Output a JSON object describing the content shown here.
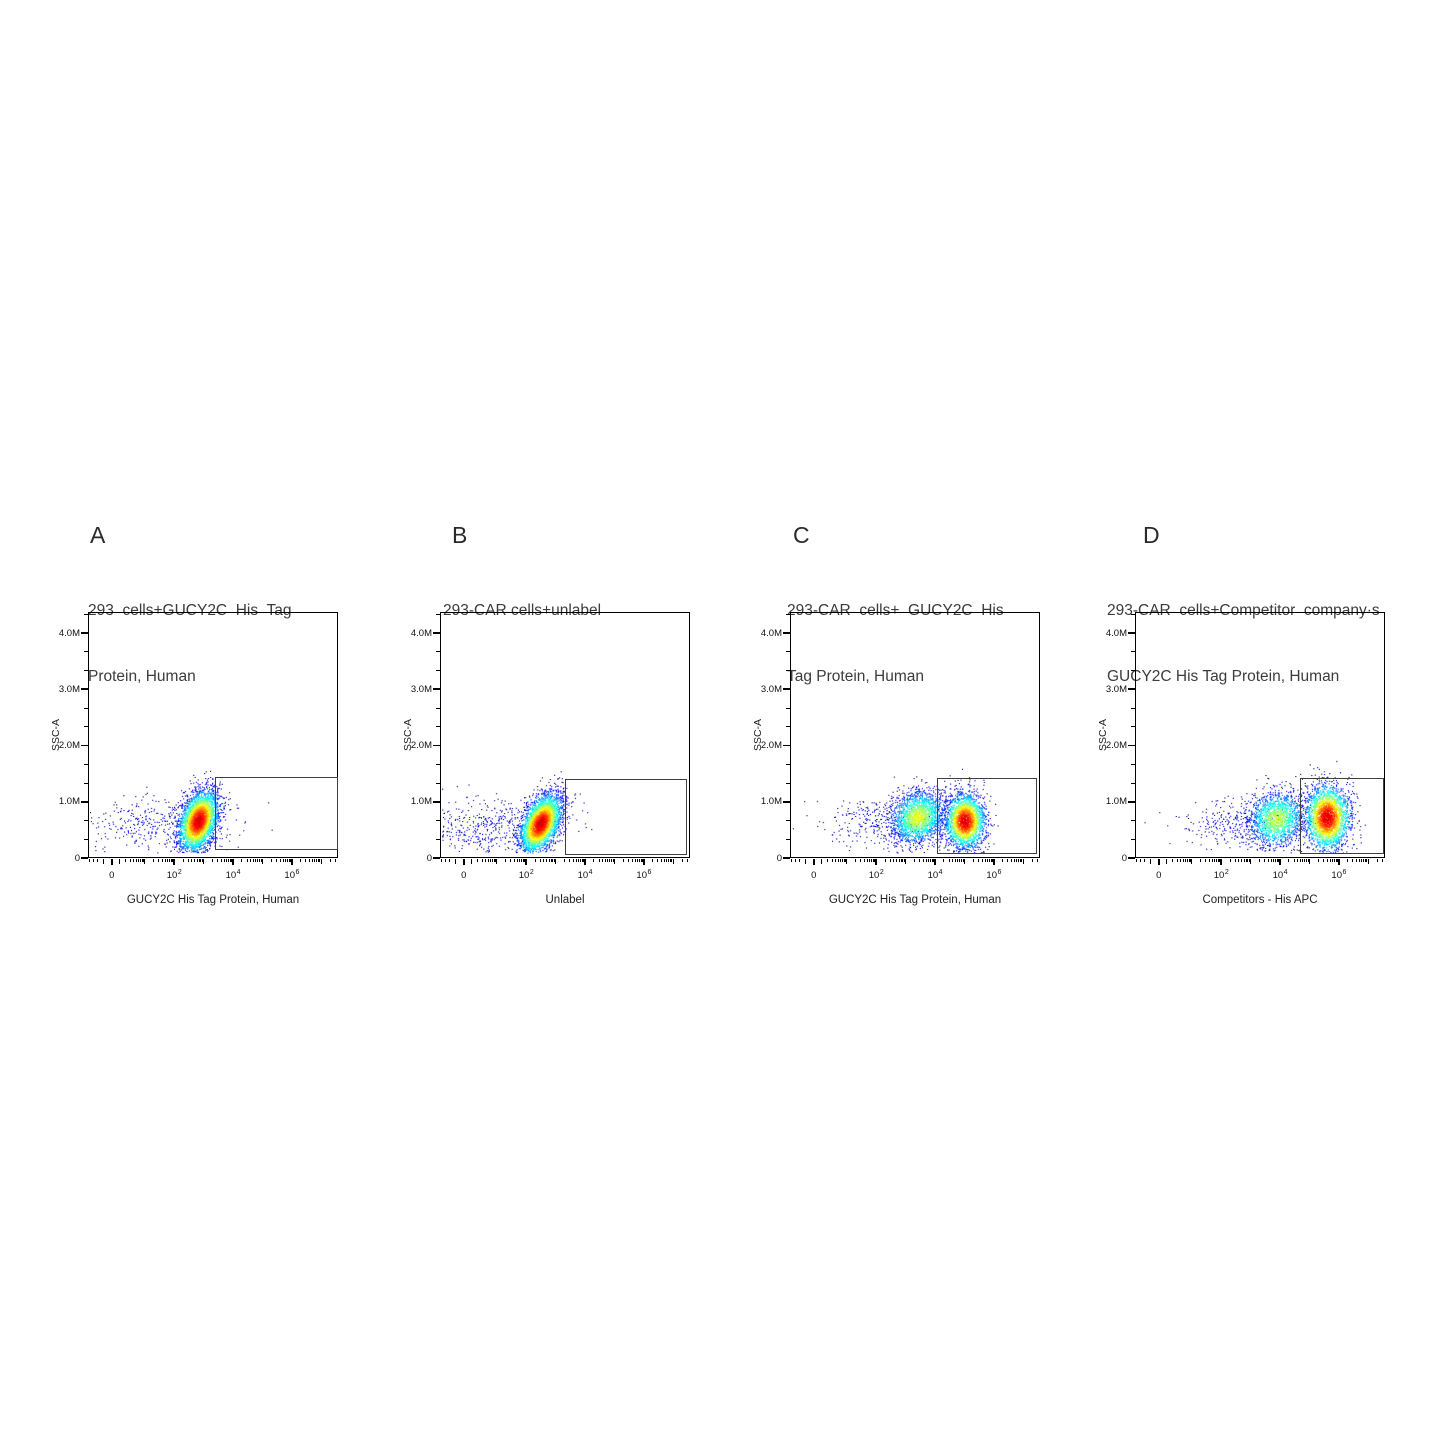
{
  "chart_data": {
    "type": "scatter",
    "subtype": "flow-cytometry-pseudocolor-density",
    "background": "#ffffff",
    "colormap": "jet-density",
    "colormap_stops": [
      "#000090",
      "#0000ff",
      "#00ffff",
      "#00ff00",
      "#ffff00",
      "#ff8000",
      "#ff1500"
    ],
    "gate_line_color": "#3f3f3f",
    "y_axis": {
      "label": "SSC-A",
      "max_value": 4375000,
      "ticks": [
        {
          "value": 0,
          "label": "0"
        },
        {
          "value": 1000000,
          "label": "1.0M"
        },
        {
          "value": 2000000,
          "label": "2.0M"
        },
        {
          "value": 3000000,
          "label": "3.0M"
        },
        {
          "value": 4000000,
          "label": "4.0M"
        }
      ],
      "minor_tick_step": 333333
    },
    "x_scale": {
      "type": "biexponential-asinh",
      "zero_fraction": 0.095,
      "fraction_per_asinh_unit": 0.0511,
      "linear_term": 1.5
    },
    "x_ticks": [
      {
        "value": 0,
        "base": "0",
        "exp": ""
      },
      {
        "value": 100,
        "base": "10",
        "exp": "2"
      },
      {
        "value": 10000,
        "base": "10",
        "exp": "4"
      },
      {
        "value": 1000000,
        "base": "10",
        "exp": "6"
      }
    ],
    "panels": [
      {
        "letter": "A",
        "title_lines": [
          "293  cells+GUCY2C  His  Tag",
          "Protein, Human"
        ],
        "x_label": "GUCY2C His Tag Protein, Human",
        "y_label": "SSC-A",
        "seed": 101,
        "gate": {
          "x0": 0.505,
          "x1": 0.996,
          "y0": 0.035,
          "y1": 0.335,
          "approx_x_range": "2.3e3 to 3e7",
          "approx_y_range": "0.15M to 1.47M",
          "stat_label": ""
        },
        "clusters": [
          {
            "name": "main-negative-population",
            "fx": 0.444,
            "fy": 0.143,
            "sigma_x": 0.04,
            "sigma_y": 0.062,
            "rho": 0.35,
            "count": 3600,
            "density_peak": 1.0,
            "approx_center": "x~6e2, SSC~0.63M"
          },
          {
            "name": "sparse-debris-left",
            "fx": 0.26,
            "fy": 0.13,
            "sigma_x": 0.12,
            "sigma_y": 0.055,
            "rho": 0.0,
            "count": 320,
            "density_peak": 0.12,
            "approx_center": "x~1e1, SSC~0.57M"
          },
          {
            "name": "stray-events-in-gate",
            "fx": 0.58,
            "fy": 0.17,
            "sigma_x": 0.06,
            "sigma_y": 0.06,
            "rho": 0.0,
            "count": 18,
            "density_peak": 0.1,
            "approx_center": "x~9e3, SSC~0.74M"
          }
        ]
      },
      {
        "letter": "B",
        "title_lines": [
          "293-CAR cells+unlabel",
          ""
        ],
        "x_label": "Unlabel",
        "y_label": "SSC-A",
        "seed": 202,
        "gate": {
          "x0": 0.495,
          "x1": 0.982,
          "y0": 0.018,
          "y1": 0.325,
          "approx_x_range": "2e3 to 2e7",
          "approx_y_range": "0.08M to 1.42M",
          "stat_label": ""
        },
        "clusters": [
          {
            "name": "main-negative-population",
            "fx": 0.404,
            "fy": 0.132,
            "sigma_x": 0.042,
            "sigma_y": 0.06,
            "rho": 0.45,
            "count": 3600,
            "density_peak": 1.0,
            "approx_center": "x~3.5e2, SSC~0.58M"
          },
          {
            "name": "sparse-debris-left",
            "fx": 0.17,
            "fy": 0.115,
            "sigma_x": 0.115,
            "sigma_y": 0.055,
            "rho": 0.0,
            "count": 380,
            "density_peak": 0.12,
            "approx_center": "x~2, SSC~0.50M"
          },
          {
            "name": "stray-events-in-gate",
            "fx": 0.55,
            "fy": 0.16,
            "sigma_x": 0.05,
            "sigma_y": 0.05,
            "rho": 0.0,
            "count": 14,
            "density_peak": 0.1,
            "approx_center": "x~5e3, SSC~0.70M"
          }
        ]
      },
      {
        "letter": "C",
        "title_lines": [
          "293-CAR  cells+  GUCY2C  His",
          "Tag Protein, Human"
        ],
        "x_label": "GUCY2C His Tag Protein, Human",
        "y_label": "SSC-A",
        "seed": 303,
        "gate": {
          "x0": 0.585,
          "x1": 0.984,
          "y0": 0.02,
          "y1": 0.33,
          "approx_x_range": "1.1e4 to 2e7",
          "approx_y_range": "0.09M to 1.44M",
          "stat_label": ""
        },
        "clusters": [
          {
            "name": "dim-population",
            "fx": 0.514,
            "fy": 0.159,
            "sigma_x": 0.055,
            "sigma_y": 0.055,
            "rho": 0.15,
            "count": 2100,
            "density_peak": 0.66,
            "approx_center": "x~2.8e3, SSC~0.70M"
          },
          {
            "name": "positive-population-in-gate",
            "fx": 0.705,
            "fy": 0.143,
            "sigma_x": 0.04,
            "sigma_y": 0.055,
            "rho": 0.0,
            "count": 2600,
            "density_peak": 1.0,
            "approx_center": "x~8.5e4, SSC~0.63M"
          },
          {
            "name": "sparse-debris-left",
            "fx": 0.33,
            "fy": 0.135,
            "sigma_x": 0.1,
            "sigma_y": 0.05,
            "rho": 0.0,
            "count": 240,
            "density_peak": 0.12,
            "approx_center": "x~6e1, SSC~0.59M"
          }
        ]
      },
      {
        "letter": "D",
        "title_lines": [
          "293-CAR  cells+Competitor  company·s",
          "GUCY2C His Tag Protein, Human"
        ],
        "x_label": "Competitors - His APC",
        "y_label": "SSC-A",
        "seed": 404,
        "gate": {
          "x0": 0.656,
          "x1": 0.992,
          "y0": 0.02,
          "y1": 0.33,
          "approx_x_range": "4.3e4 to 2.5e7",
          "approx_y_range": "0.09M to 1.44M",
          "stat_label": ""
        },
        "clusters": [
          {
            "name": "dim-population",
            "fx": 0.568,
            "fy": 0.151,
            "sigma_x": 0.058,
            "sigma_y": 0.058,
            "rho": 0.1,
            "count": 1700,
            "density_peak": 0.62,
            "approx_center": "x~7.4e3, SSC~0.66M"
          },
          {
            "name": "positive-population-in-gate",
            "fx": 0.775,
            "fy": 0.158,
            "sigma_x": 0.045,
            "sigma_y": 0.065,
            "rho": 0.0,
            "count": 2800,
            "density_peak": 1.0,
            "approx_center": "x~4.1e5, SSC~0.69M"
          },
          {
            "name": "sparse-debris-left",
            "fx": 0.38,
            "fy": 0.135,
            "sigma_x": 0.11,
            "sigma_y": 0.05,
            "rho": 0.0,
            "count": 260,
            "density_peak": 0.12,
            "approx_center": "x~2e2, SSC~0.59M"
          }
        ]
      }
    ]
  }
}
